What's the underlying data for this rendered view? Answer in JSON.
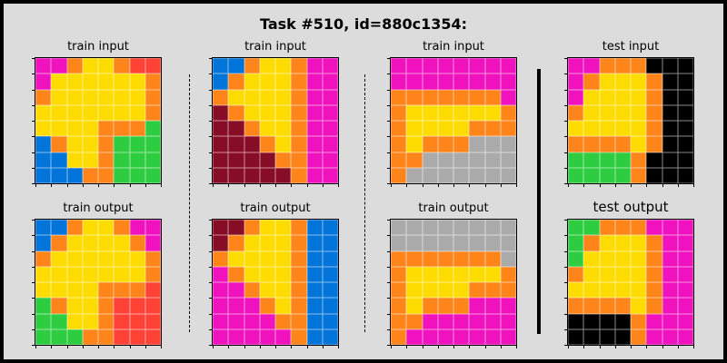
{
  "title": "Task #510, id=880c1354:",
  "palette": {
    "P": "#f012be",
    "O": "#ff851b",
    "Y": "#ffdc00",
    "R": "#ff4136",
    "G": "#2ecc40",
    "B": "#0074d9",
    "M": "#870c25",
    "S": "#aaaaaa",
    "K": "#000000"
  },
  "panels": [
    {
      "label": "train input",
      "grid": [
        "PPOYYORR",
        "PYYYYYYO",
        "OYYYYYYO",
        "YYYYYYYO",
        "YYYYOOOG",
        "BOYYOGGG",
        "BBYYOGGG",
        "BBBOOGGG"
      ]
    },
    {
      "label": "train output",
      "grid": [
        "BBOYYOPP",
        "BOYYYYOP",
        "OYYYYYYO",
        "YYYYYYYO",
        "YYYYOOOR",
        "GOYYORRR",
        "GGYYORRR",
        "GGGOORRR"
      ]
    },
    {
      "label": "train input",
      "grid": [
        "BBOYYOPP",
        "BOYYYOPP",
        "OYYYYOPP",
        "MOYYYOPP",
        "MMOYYOPP",
        "MMMOYOPP",
        "MMMMOOPP",
        "MMMMMOPP"
      ]
    },
    {
      "label": "train output",
      "grid": [
        "MMOYYOBB",
        "MOYYYOBB",
        "OYYYYOBB",
        "POYYYOBB",
        "PPOYYOBB",
        "PPPOYOBB",
        "PPPPOOBB",
        "PPPPPOBB"
      ]
    },
    {
      "label": "train input",
      "grid": [
        "PPPPPPPP",
        "PPPPPPPP",
        "OOOOOOOP",
        "OYYYYYYO",
        "OYYYYOOO",
        "OYOOOSSS",
        "OOSSSSSS",
        "OSSSSSSS"
      ]
    },
    {
      "label": "train output",
      "grid": [
        "SSSSSSSS",
        "SSSSSSSS",
        "OOOOOOOS",
        "OYYYYYYO",
        "OYYYYOOO",
        "OYOOOPPP",
        "OOPPPPPP",
        "OPPPPPPP"
      ]
    },
    {
      "label": "test input",
      "grid": [
        "PPOOOKKK",
        "POYYYOKK",
        "PYYYYOKK",
        "OYYYYOKK",
        "YYYYYOKK",
        "OOOOYOKK",
        "GGGGOKKK",
        "GGGGOKKK"
      ]
    },
    {
      "label": "test output",
      "grid": [
        "GGOOOPPP",
        "GOYYYOPP",
        "GYYYYOPP",
        "OYYYYOPP",
        "YYYYYOPP",
        "OOOOYOPP",
        "KKKKOPPP",
        "KKKKOPPP"
      ]
    }
  ]
}
